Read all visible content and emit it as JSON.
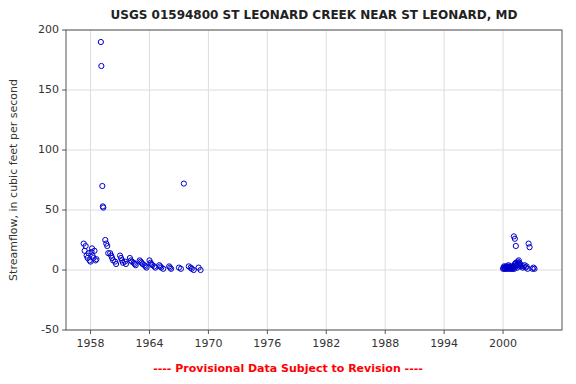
{
  "chart_data": {
    "type": "scatter",
    "title": "USGS 01594800 ST LEONARD CREEK NEAR ST LEONARD, MD",
    "ylabel": "Streamflow, in cubic feet per second",
    "annotations": [
      {
        "text": "---- Provisional Data Subject to Revision ----",
        "color": "red"
      }
    ],
    "color": "#0000cc",
    "marker": "circle",
    "grid": true,
    "xlim": [
      1955.5,
      2006
    ],
    "ylim": [
      -50,
      200
    ],
    "xticks": [
      1958,
      1964,
      1970,
      1976,
      1982,
      1988,
      1994,
      2000
    ],
    "yticks": [
      -50,
      0,
      50,
      100,
      150,
      200
    ],
    "x": [
      1957.3,
      1957.4,
      1957.5,
      1957.6,
      1957.7,
      1957.8,
      1957.9,
      1958.0,
      1958.1,
      1958.15,
      1958.2,
      1958.3,
      1958.4,
      1958.5,
      1958.6,
      1959.05,
      1959.1,
      1959.2,
      1959.25,
      1959.3,
      1959.5,
      1959.6,
      1959.7,
      1959.8,
      1960.0,
      1960.1,
      1960.2,
      1960.3,
      1960.5,
      1960.6,
      1961.0,
      1961.1,
      1961.2,
      1961.3,
      1961.5,
      1961.6,
      1962.0,
      1962.1,
      1962.2,
      1962.4,
      1962.5,
      1962.6,
      1963.0,
      1963.1,
      1963.2,
      1963.3,
      1963.5,
      1963.6,
      1963.7,
      1964.0,
      1964.1,
      1964.2,
      1964.3,
      1964.5,
      1964.6,
      1965.0,
      1965.1,
      1965.2,
      1965.4,
      1966.0,
      1966.1,
      1966.2,
      1967.0,
      1967.2,
      1967.5,
      1968.0,
      1968.2,
      1968.3,
      1968.5,
      1969.0,
      1969.2,
      2000.0,
      2000.05,
      2000.1,
      2000.15,
      2000.2,
      2000.25,
      2000.3,
      2000.35,
      2000.4,
      2000.45,
      2000.5,
      2000.55,
      2000.6,
      2000.65,
      2000.7,
      2000.75,
      2000.8,
      2000.85,
      2000.9,
      2000.95,
      2001.0,
      2001.05,
      2001.1,
      2001.15,
      2001.2,
      2001.25,
      2001.3,
      2001.35,
      2001.4,
      2001.45,
      2001.5,
      2001.55,
      2001.6,
      2001.65,
      2001.7,
      2001.75,
      2001.8,
      2002.0,
      2002.1,
      2002.2,
      2002.3,
      2002.4,
      2002.5,
      2003.0,
      2003.1,
      2003.2,
      2001.1,
      2001.2,
      2001.3,
      2002.6,
      2002.7
    ],
    "values": [
      22,
      16,
      20,
      12,
      10,
      14,
      8,
      7,
      15,
      18,
      12,
      10,
      16,
      8,
      9,
      190,
      170,
      70,
      53,
      52,
      25,
      22,
      20,
      14,
      14,
      12,
      10,
      8,
      7,
      5,
      12,
      10,
      8,
      6,
      7,
      5,
      10,
      8,
      7,
      6,
      5,
      4,
      8,
      7,
      6,
      5,
      4,
      3,
      2,
      8,
      6,
      5,
      4,
      3,
      2,
      4,
      3,
      2,
      1,
      3,
      2,
      1,
      2,
      1,
      72,
      3,
      2,
      1,
      0,
      2,
      0,
      1,
      2,
      3,
      1,
      2,
      1,
      3,
      2,
      1,
      3,
      2,
      4,
      1,
      2,
      3,
      1,
      2,
      3,
      1,
      2,
      1,
      2,
      3,
      1,
      5,
      4,
      6,
      3,
      4,
      2,
      7,
      5,
      8,
      6,
      4,
      5,
      3,
      2,
      3,
      4,
      2,
      3,
      1,
      1,
      2,
      1,
      28,
      26,
      20,
      22,
      19
    ]
  }
}
